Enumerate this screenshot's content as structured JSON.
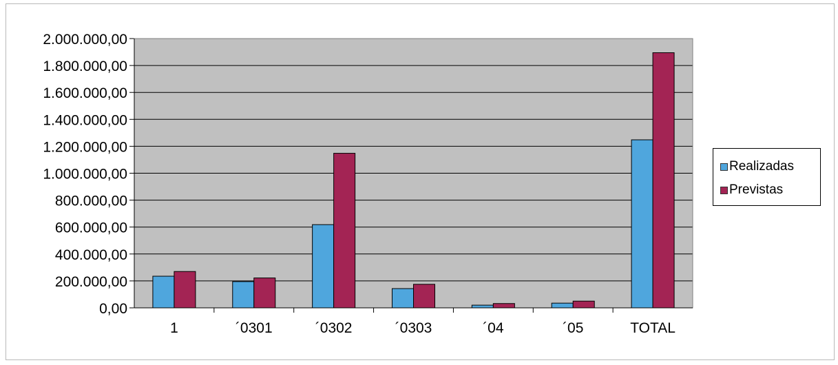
{
  "chart_data": {
    "type": "bar",
    "categories": [
      "1",
      "´0301",
      "´0302",
      "´0303",
      "´04",
      "´05",
      "TOTAL"
    ],
    "series": [
      {
        "name": "Realizadas",
        "color": "#4fa6dd",
        "values": [
          235000,
          195000,
          618000,
          143000,
          20000,
          35000,
          1248000
        ]
      },
      {
        "name": "Previstas",
        "color": "#a32454",
        "values": [
          270000,
          222000,
          1148000,
          175000,
          32000,
          50000,
          1895000
        ]
      }
    ],
    "y_ticks": [
      "0,00",
      "200.000,00",
      "400.000,00",
      "600.000,00",
      "800.000,00",
      "1.000.000,00",
      "1.200.000,00",
      "1.400.000,00",
      "1.600.000,00",
      "1.800.000,00",
      "2.000.000,00"
    ],
    "ylim": [
      0,
      2000000
    ],
    "grid": true,
    "legend_position": "right",
    "plot_background": "#c0c0c0",
    "title": "",
    "xlabel": "",
    "ylabel": ""
  }
}
